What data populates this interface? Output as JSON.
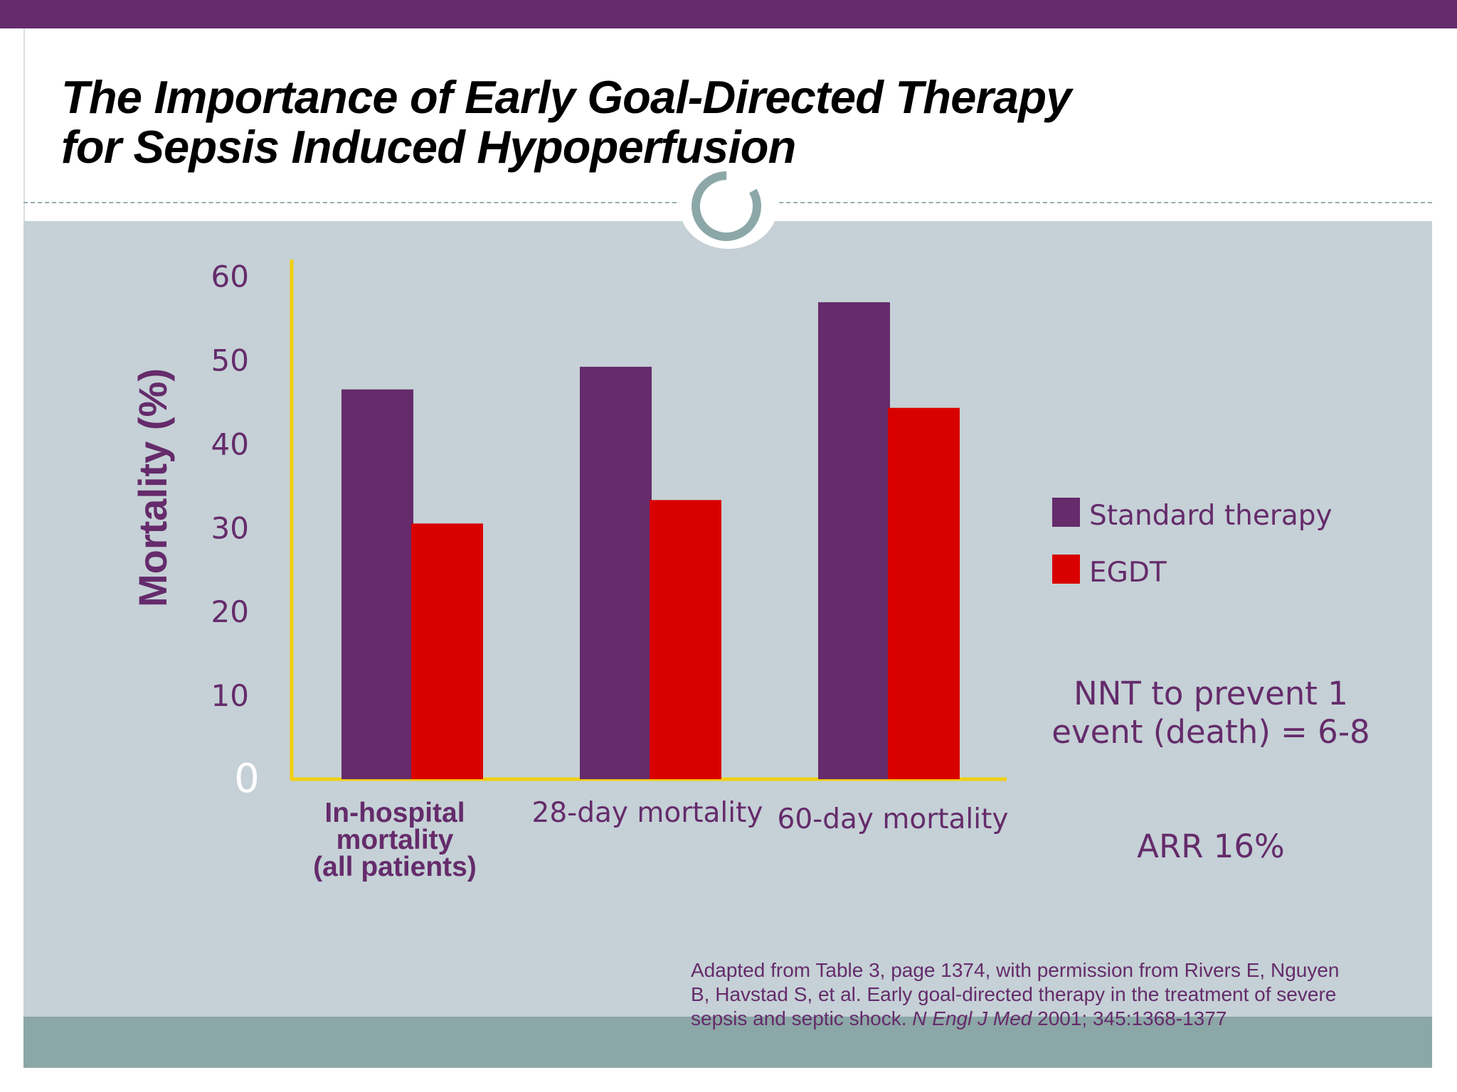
{
  "slide": {
    "title_lines": [
      "The Importance of Early Goal-Directed Therapy",
      "for Sepsis Induced Hypoperfusion"
    ],
    "colors": {
      "primary": "#652b6b",
      "standard_therapy": "#652b6b",
      "egdt": "#d90000",
      "axis": "#f0cf12",
      "panel": "#c5d1d6",
      "footer_band": "#8ca7a7"
    }
  },
  "chart_data": {
    "type": "bar",
    "title": "The Importance of Early Goal-Directed Therapy for Sepsis Induced Hypoperfusion",
    "xlabel": "",
    "ylabel": "Mortality (%)",
    "ylim": [
      0,
      62
    ],
    "yticks": [
      0,
      10,
      20,
      30,
      40,
      50,
      60
    ],
    "ytick_labels": [
      "0",
      "10",
      "20",
      "30",
      "40",
      "50",
      "60"
    ],
    "grid": false,
    "legend_position": "right",
    "categories": [
      "In-hospital mortality (all patients)",
      "28-day mortality",
      "60-day mortality"
    ],
    "category_label_lines": [
      [
        "In-hospital",
        "mortality",
        "(all patients)"
      ],
      [
        "28-day  mortality"
      ],
      [
        "60-day  mortality"
      ]
    ],
    "series": [
      {
        "name": "Standard therapy",
        "values": [
          46.5,
          49.2,
          56.9
        ],
        "color": "#652b6b"
      },
      {
        "name": "EGDT",
        "values": [
          30.5,
          33.3,
          44.3
        ],
        "color": "#d90000"
      }
    ],
    "annotations": {
      "nnt_lines": [
        "NNT to prevent 1",
        "event (death) = 6-8"
      ],
      "arr": "ARR 16%"
    }
  },
  "citation": {
    "line1": "Adapted from Table 3, page 1374, with permission from Rivers E, Nguyen",
    "line2": "B, Havstad S, et al. Early goal-directed therapy in the treatment of severe",
    "line3_prefix": "sepsis and septic shock. ",
    "journal": "N Engl J Med",
    "line3_suffix": " 2001; 345:1368-1377"
  },
  "icons": {
    "section_marker": "ring-icon"
  }
}
